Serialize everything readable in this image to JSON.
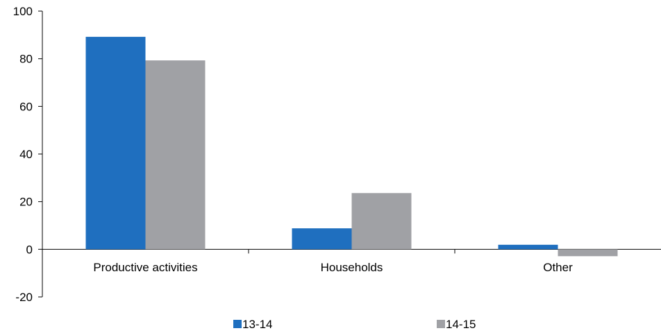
{
  "chart_data": {
    "type": "bar",
    "categories": [
      "Productive activities",
      "Households",
      "Other"
    ],
    "series": [
      {
        "name": "13-14",
        "values": [
          89.2,
          8.8,
          1.9
        ],
        "color": "#1f6fbf"
      },
      {
        "name": "14-15",
        "values": [
          79.3,
          23.6,
          -2.9
        ],
        "color": "#a0a1a5"
      }
    ],
    "ylim": [
      -20,
      100
    ],
    "yticks": [
      -20,
      0,
      20,
      40,
      60,
      80,
      100
    ],
    "grid": false,
    "legend": "bottom-center"
  }
}
